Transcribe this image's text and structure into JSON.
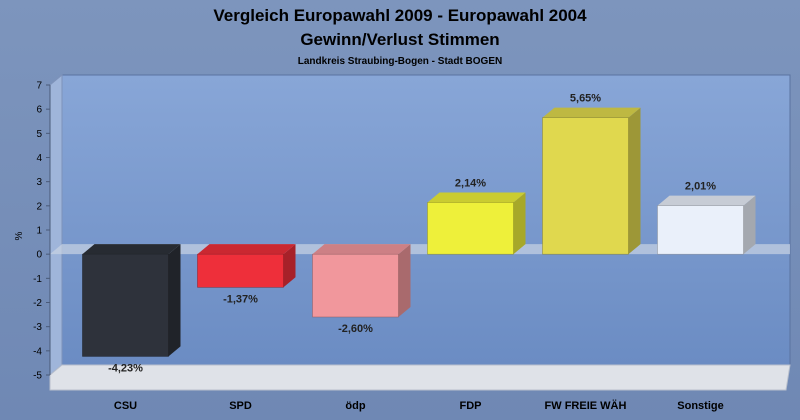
{
  "chart_data": {
    "type": "bar",
    "title": "Vergleich Europawahl 2009 - Europawahl 2004",
    "subtitle": "Gewinn/Verlust Stimmen",
    "caption": "Landkreis Straubing-Bogen - Stadt BOGEN",
    "ylabel": "%",
    "xlabel": "",
    "ylim": [
      -5,
      7
    ],
    "yticks": [
      "-5",
      "-4",
      "-3",
      "-2",
      "-1",
      "0",
      "1",
      "2",
      "3",
      "4",
      "5",
      "6",
      "7"
    ],
    "categories": [
      "CSU",
      "SPD",
      "ödp",
      "FDP",
      "FW FREIE WÄH",
      "Sonstige"
    ],
    "values": [
      -4.23,
      -1.37,
      -2.6,
      2.14,
      5.65,
      2.01
    ],
    "value_labels": [
      "-4,23%",
      "-1,37%",
      "-2,60%",
      "2,14%",
      "5,65%",
      "2,01%"
    ],
    "colors": [
      "#2e323b",
      "#ee2f3a",
      "#f1979c",
      "#eef03a",
      "#e0d84e",
      "#eaf0fa"
    ],
    "grid": false,
    "legend": "none"
  }
}
